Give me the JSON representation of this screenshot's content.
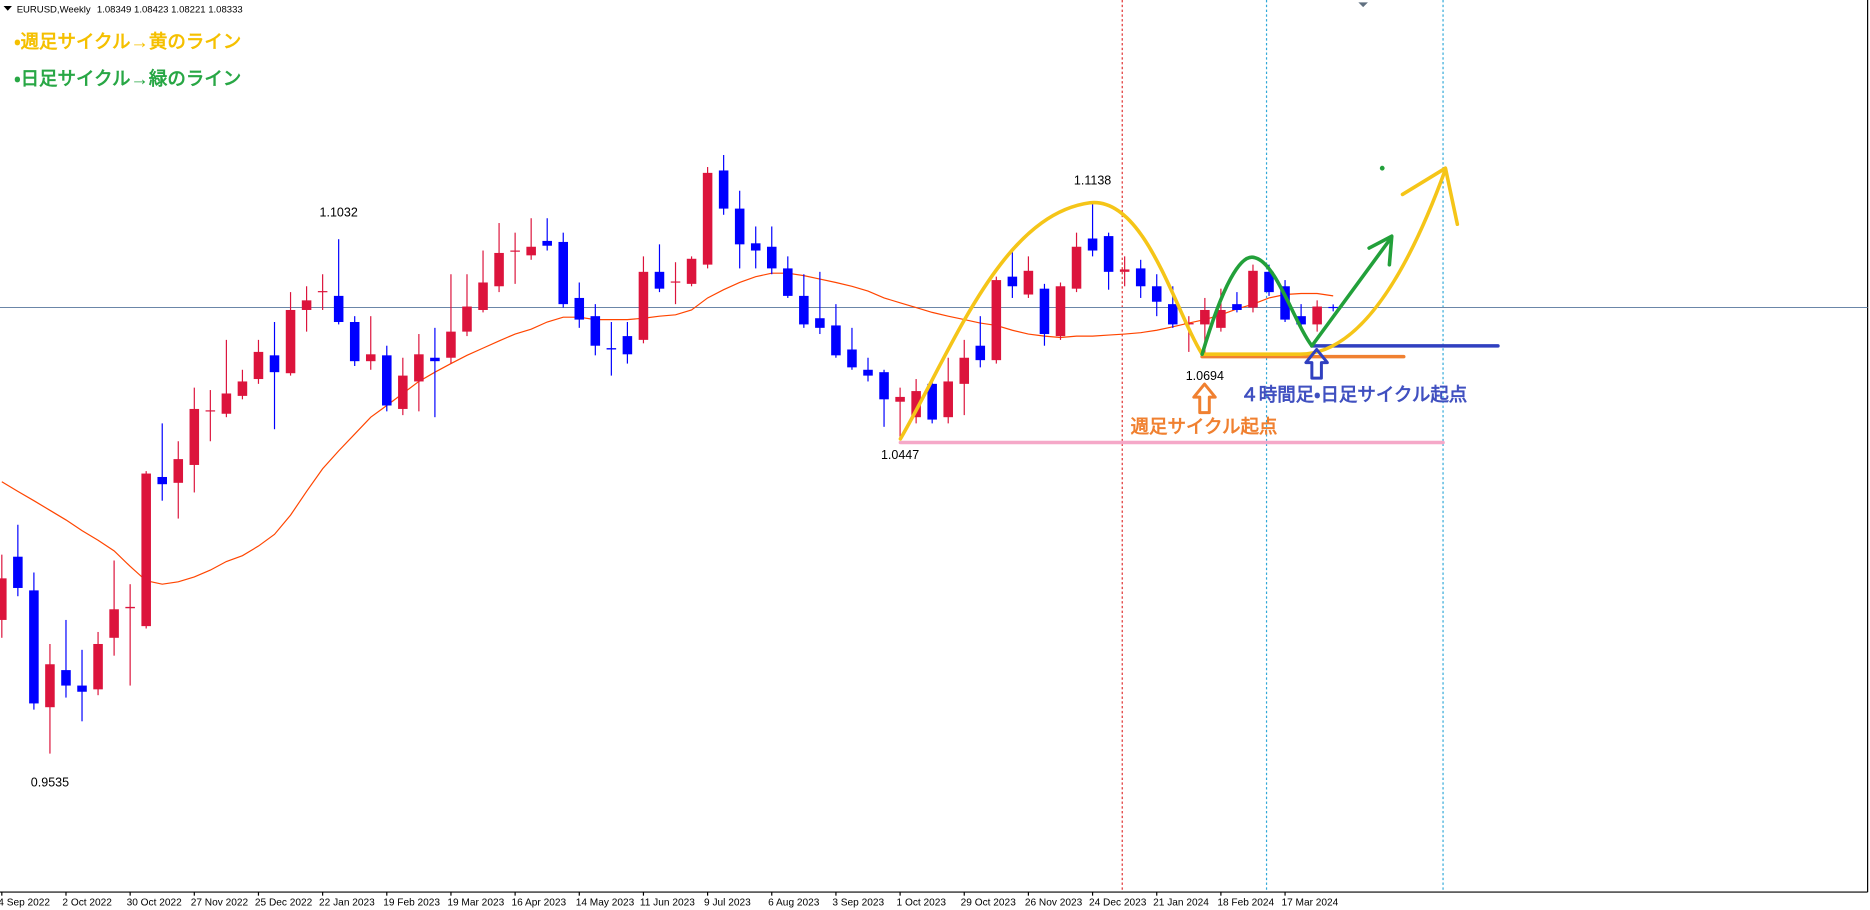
{
  "chart_data": {
    "type": "candlestick",
    "title": "EURUSD,Weekly",
    "notes": [
      "・週足サイクル→黄のライン",
      "・日足サイクル→緑のライン",
      "週足サイクル起点",
      "４時間足・日足サイクル起点"
    ],
    "up_color": "#dc143c",
    "down_color": "#0000ff",
    "ylim": [
      0.9132,
      1.1728
    ],
    "categories": [
      "4 Sep 2022",
      null,
      null,
      null,
      "2 Oct 2022",
      null,
      null,
      null,
      "30 Oct 2022",
      null,
      null,
      null,
      "27 Nov 2022",
      null,
      null,
      null,
      "25 Dec 2022",
      null,
      null,
      null,
      "22 Jan 2023",
      null,
      null,
      null,
      "19 Feb 2023",
      null,
      null,
      null,
      "19 Mar 2023",
      null,
      null,
      null,
      "16 Apr 2023",
      null,
      null,
      null,
      "14 May 2023",
      null,
      null,
      null,
      "11 Jun 2023",
      null,
      null,
      null,
      "9 Jul 2023",
      null,
      null,
      null,
      "6 Aug 2023",
      null,
      null,
      null,
      "3 Sep 2023",
      null,
      null,
      null,
      "1 Oct 2023",
      null,
      null,
      null,
      "29 Oct 2023",
      null,
      null,
      null,
      "26 Nov 2023",
      null,
      null,
      null,
      "24 Dec 2023",
      null,
      null,
      null,
      "21 Jan 2024",
      null,
      null,
      null,
      "18 Feb 2024",
      null,
      null,
      null,
      "17 Mar 2024",
      null,
      null,
      null
    ],
    "open": [
      0.9924,
      1.0108,
      1.001,
      0.967,
      0.9778,
      0.9733,
      0.9722,
      0.9872,
      0.9958,
      0.9906,
      1.034,
      1.0323,
      1.0375,
      1.0531,
      1.0524,
      1.0576,
      1.0625,
      1.0694,
      1.0642,
      1.0826,
      1.0878,
      1.0867,
      1.0791,
      1.0677,
      1.0694,
      1.0538,
      1.0618,
      1.0687,
      1.0687,
      1.0763,
      1.0826,
      1.0895,
      1.0996,
      1.0985,
      1.1027,
      1.1024,
      1.0861,
      1.0808,
      1.0715,
      1.075,
      1.0739,
      1.0937,
      1.0906,
      1.0902,
      1.0958,
      1.1232,
      1.1121,
      1.102,
      1.101,
      1.0947,
      1.0867,
      1.0802,
      1.0781,
      1.0711,
      1.0652,
      1.0645,
      1.0559,
      1.0514,
      1.0611,
      1.0514,
      1.0611,
      1.0722,
      1.068,
      1.0923,
      1.0871,
      1.0888,
      1.075,
      1.0888,
      1.1034,
      1.1041,
      1.0937,
      1.0947,
      1.0895,
      1.0843,
      1.0784,
      1.0784,
      1.0774,
      1.0843,
      1.0833,
      1.0937,
      1.0895,
      1.0808,
      1.0784,
      1.08349
    ],
    "high": [
      1.0114,
      1.0201,
      1.0062,
      0.9854,
      0.9924,
      0.9837,
      0.9889,
      1.0097,
      1.0028,
      1.0357,
      1.0496,
      1.0444,
      1.06,
      1.0593,
      1.0739,
      1.0652,
      1.0739,
      1.0791,
      1.0878,
      1.0895,
      1.093,
      1.1032,
      1.0808,
      1.0808,
      1.0722,
      1.0687,
      1.0756,
      1.0774,
      1.093,
      1.093,
      1.0999,
      1.1079,
      1.1051,
      1.1093,
      1.1093,
      1.1051,
      1.0906,
      1.0843,
      1.0791,
      1.0791,
      1.0982,
      1.1017,
      1.0965,
      1.0982,
      1.1242,
      1.1277,
      1.1173,
      1.1069,
      1.1069,
      1.0982,
      1.093,
      1.0937,
      1.0843,
      1.0774,
      1.0687,
      1.0652,
      1.06,
      1.0625,
      1.0625,
      1.0687,
      1.0739,
      1.0808,
      1.0923,
      1.0999,
      1.0982,
      1.0902,
      1.0906,
      1.1051,
      1.1138,
      1.1051,
      1.0982,
      1.0972,
      1.093,
      1.0895,
      1.0808,
      1.0861,
      1.0888,
      1.0878,
      1.0958,
      1.0958,
      1.0913,
      1.0843,
      1.0854,
      1.08423
    ],
    "low": [
      0.9872,
      0.9993,
      0.9663,
      0.9535,
      0.9698,
      0.9629,
      0.9705,
      0.982,
      0.9733,
      0.9899,
      1.0271,
      1.0219,
      1.0295,
      1.0444,
      1.0514,
      1.0566,
      1.0611,
      1.0479,
      1.0635,
      1.0763,
      1.0826,
      1.0784,
      1.0663,
      1.0652,
      1.0531,
      1.052,
      1.0531,
      1.0514,
      1.067,
      1.075,
      1.0819,
      1.0878,
      1.0902,
      1.0972,
      1.0999,
      1.0833,
      1.0774,
      1.0694,
      1.0635,
      1.067,
      1.0729,
      1.0878,
      1.0843,
      1.0895,
      1.0947,
      1.1103,
      1.0947,
      1.0947,
      1.093,
      1.0861,
      1.0774,
      1.0756,
      1.0687,
      1.0652,
      1.0618,
      1.0486,
      1.0447,
      1.0496,
      1.0496,
      1.0496,
      1.052,
      1.0659,
      1.067,
      1.0861,
      1.0861,
      1.0722,
      1.0739,
      1.0878,
      1.0982,
      1.0885,
      1.0895,
      1.0861,
      1.0808,
      1.0774,
      1.0704,
      1.0694,
      1.0763,
      1.0819,
      1.0819,
      1.0867,
      1.0791,
      1.0774,
      1.0763,
      1.08221
    ],
    "close": [
      1.0045,
      1.0017,
      0.9681,
      0.9795,
      0.9733,
      0.9715,
      0.9854,
      0.9955,
      0.9962,
      1.035,
      1.0319,
      1.0392,
      1.0538,
      1.0534,
      1.0583,
      1.0618,
      1.0704,
      1.0645,
      1.0826,
      1.0854,
      1.0881,
      1.0791,
      1.0677,
      1.0697,
      1.0548,
      1.0635,
      1.0697,
      1.0677,
      1.0763,
      1.0836,
      1.0906,
      1.0992,
      1.0999,
      1.101,
      1.1013,
      1.0843,
      1.0798,
      1.0722,
      1.0711,
      1.0697,
      1.0937,
      1.0888,
      1.0909,
      1.0975,
      1.1225,
      1.1121,
      1.1017,
      1.0999,
      1.0947,
      1.0867,
      1.0784,
      1.0774,
      1.0694,
      1.0659,
      1.0635,
      1.0566,
      1.0573,
      1.059,
      1.0507,
      1.0618,
      1.0687,
      1.068,
      1.0913,
      1.0895,
      1.094,
      1.0756,
      1.0895,
      1.101,
      1.0999,
      1.0937,
      1.0944,
      1.0895,
      1.085,
      1.0784,
      1.0788,
      1.0826,
      1.0826,
      1.0826,
      1.094,
      1.0878,
      1.0798,
      1.0784,
      1.0836,
      1.08333
    ],
    "moving_average": {
      "color": "#ff4500",
      "values": [
        1.0326,
        1.0298,
        1.0271,
        1.0243,
        1.0215,
        1.0184,
        1.0156,
        1.0125,
        1.008,
        1.0038,
        1.0028,
        1.0035,
        1.0049,
        1.0069,
        1.0094,
        1.0111,
        1.0139,
        1.0173,
        1.0229,
        1.0298,
        1.0364,
        1.0416,
        1.0465,
        1.0514,
        1.0548,
        1.0583,
        1.0618,
        1.0645,
        1.067,
        1.0694,
        1.0715,
        1.0736,
        1.0756,
        1.077,
        1.0791,
        1.0805,
        1.0805,
        1.0798,
        1.0798,
        1.0798,
        1.0802,
        1.0808,
        1.0812,
        1.0826,
        1.0861,
        1.0885,
        1.0906,
        1.0923,
        1.0933,
        1.0933,
        1.0926,
        1.0916,
        1.0906,
        1.0895,
        1.0881,
        1.0861,
        1.0847,
        1.0833,
        1.0819,
        1.0808,
        1.0798,
        1.0788,
        1.0781,
        1.0767,
        1.0756,
        1.075,
        1.0746,
        1.075,
        1.075,
        1.0753,
        1.0756,
        1.076,
        1.0767,
        1.0777,
        1.0788,
        1.0798,
        1.0812,
        1.0829,
        1.0843,
        1.0861,
        1.0871,
        1.0874,
        1.0874,
        1.0867
      ]
    }
  }
}
